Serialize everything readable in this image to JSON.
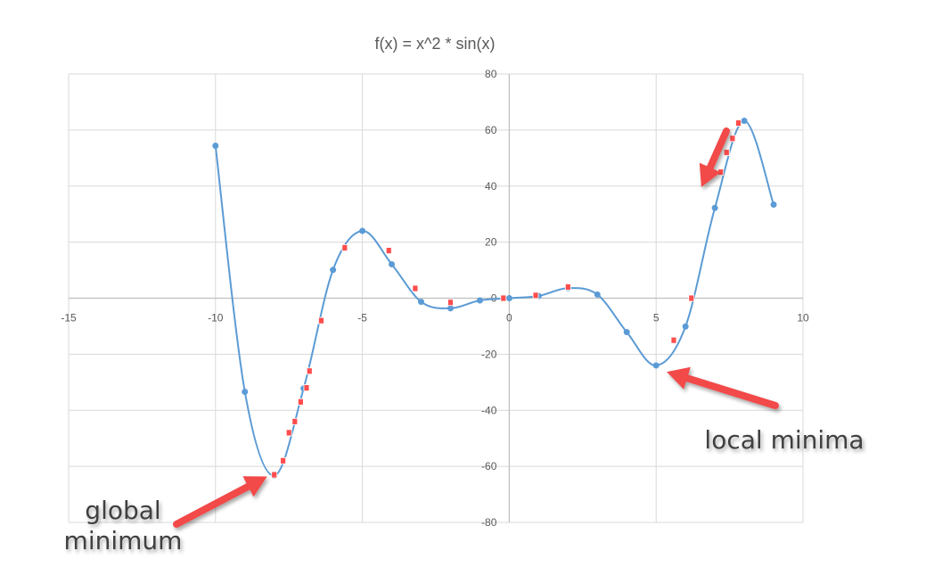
{
  "chart_data": {
    "type": "scatter",
    "title": "f(x) = x^2 * sin(x)",
    "xlim": [
      -15,
      10
    ],
    "ylim": [
      -80,
      80
    ],
    "x_ticks": [
      -15,
      -10,
      -5,
      0,
      5,
      10
    ],
    "y_ticks": [
      -80,
      -60,
      -40,
      -20,
      0,
      20,
      40,
      60,
      80
    ],
    "grid": true,
    "legend": "none",
    "line_color": "#5b9bd5",
    "marker_color": "#ff4d4d",
    "series": [
      {
        "style": "smooth-line-with-dots",
        "points": [
          [
            -10,
            54.4
          ],
          [
            -9,
            -33.4
          ],
          [
            -8,
            -63.3
          ],
          [
            -7,
            -32.2
          ],
          [
            -6,
            10.1
          ],
          [
            -5,
            24.0
          ],
          [
            -4,
            12.1
          ],
          [
            -3,
            -1.3
          ],
          [
            -2,
            -3.6
          ],
          [
            -1,
            -0.8
          ],
          [
            0,
            0
          ],
          [
            1,
            0.8
          ],
          [
            2,
            3.6
          ],
          [
            3,
            1.3
          ],
          [
            4,
            -12.1
          ],
          [
            5,
            -24.0
          ],
          [
            6,
            -10.1
          ],
          [
            7,
            32.2
          ],
          [
            8,
            63.3
          ],
          [
            9,
            33.4
          ]
        ]
      },
      {
        "style": "square-markers",
        "points": [
          [
            -8.0,
            -63.0
          ],
          [
            -7.7,
            -58.0
          ],
          [
            -7.5,
            -48.0
          ],
          [
            -7.3,
            -44.0
          ],
          [
            -7.1,
            -37.0
          ],
          [
            -6.9,
            -32.0
          ],
          [
            -6.8,
            -26.0
          ],
          [
            -6.4,
            -8.0
          ],
          [
            -5.6,
            18.0
          ],
          [
            -4.1,
            17.0
          ],
          [
            -3.2,
            3.5
          ],
          [
            -2.0,
            -1.5
          ],
          [
            -0.2,
            0.0
          ],
          [
            0.9,
            1.0
          ],
          [
            2.0,
            4.0
          ],
          [
            5.6,
            -15.0
          ],
          [
            6.2,
            0.0
          ],
          [
            7.2,
            45.0
          ],
          [
            7.4,
            52.0
          ],
          [
            7.6,
            57.0
          ],
          [
            7.8,
            62.5
          ]
        ]
      }
    ],
    "annotations": [
      {
        "text": [
          "global",
          "minimum"
        ],
        "arrow_to": [
          -8.0,
          -63.0
        ]
      },
      {
        "text": [
          "local minima"
        ],
        "arrow_to": [
          5.3,
          -25.0
        ]
      },
      {
        "text": [],
        "arrow_to": [
          6.6,
          39.0
        ]
      }
    ]
  }
}
